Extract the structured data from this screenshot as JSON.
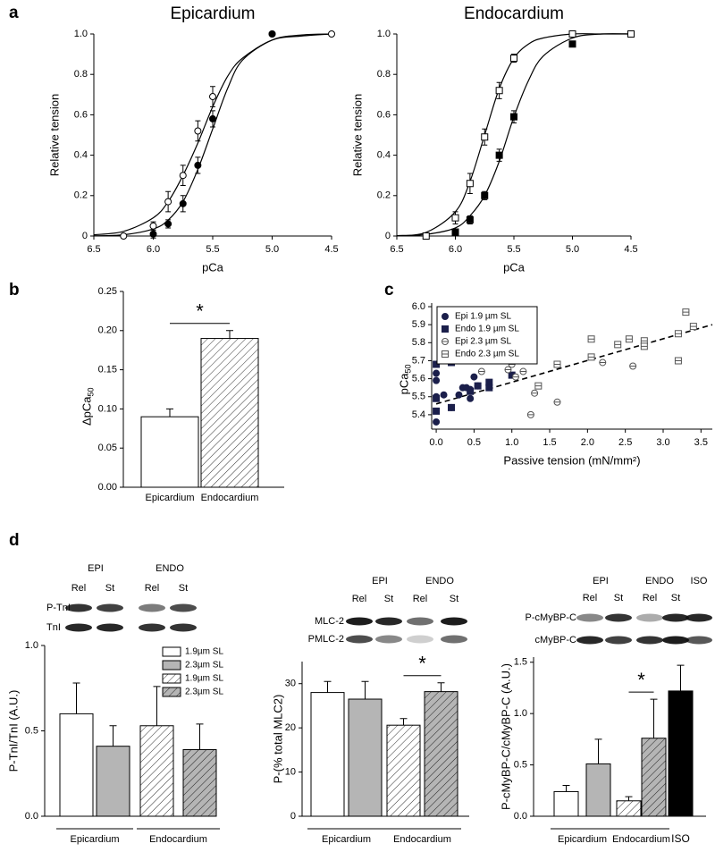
{
  "panel_labels": [
    "a",
    "b",
    "c",
    "d"
  ],
  "blots": [
    {
      "groups": [
        "EPI",
        "ENDO"
      ],
      "lanes": [
        "Rel",
        "St",
        "Rel",
        "St"
      ],
      "rows": [
        "P-TnI",
        "TnI"
      ]
    },
    {
      "groups": [
        "EPI",
        "ENDO"
      ],
      "lanes": [
        "Rel",
        "St",
        "Rel",
        "St"
      ],
      "rows": [
        "MLC-2",
        "PMLC-2"
      ]
    },
    {
      "groups": [
        "EPI",
        "ENDO",
        "ISO"
      ],
      "lanes": [
        "Rel",
        "St",
        "Rel",
        "St"
      ],
      "rows": [
        "P-cMyBP-C",
        "cMyBP-C"
      ]
    }
  ],
  "chart_data": [
    {
      "type": "scatter",
      "title": "Epicardium",
      "x_label": "pCa",
      "y_label": "Relative tension",
      "xlim": [
        6.5,
        4.5
      ],
      "ylim": [
        0,
        1
      ],
      "xticks": [
        6.5,
        {
          "value": 6,
          "label": "6.0"
        },
        5.5,
        {
          "value": 5,
          "label": "5.0"
        },
        4.5
      ],
      "yticks": [
        0,
        0.2,
        0.4,
        0.6,
        0.8,
        {
          "value": 1,
          "label": "1.0"
        }
      ],
      "series": [
        {
          "color": "#000000",
          "marker": "circle",
          "filled": false,
          "x": [
            6.25,
            6.0,
            5.875,
            5.75,
            5.625,
            5.5,
            5.0,
            4.5
          ],
          "values": [
            0,
            0.05,
            0.17,
            0.3,
            0.52,
            0.69,
            1.0,
            1.0
          ],
          "errors": [
            0,
            0.02,
            0.05,
            0.05,
            0.05,
            0.05,
            0.01,
            0
          ]
        },
        {
          "color": "#000000",
          "marker": "circle",
          "filled": true,
          "x": [
            6.0,
            5.875,
            5.75,
            5.625,
            5.5,
            5.0
          ],
          "values": [
            0.01,
            0.06,
            0.16,
            0.35,
            0.58,
            1.0
          ],
          "errors": [
            0.02,
            0.02,
            0.04,
            0.04,
            0.04,
            0.01
          ]
        }
      ],
      "fits": [
        {
          "x": [
            6.5,
            6.25,
            6.0,
            5.875,
            5.75,
            5.625,
            5.5,
            5.375,
            5.25,
            5.0,
            4.75,
            4.5
          ],
          "values": [
            0.006,
            0.023,
            0.09,
            0.17,
            0.3,
            0.46,
            0.64,
            0.79,
            0.88,
            0.97,
            0.99,
            1.0
          ]
        },
        {
          "x": [
            6.5,
            6.25,
            6.0,
            5.875,
            5.75,
            5.625,
            5.5,
            5.375,
            5.25,
            5.0,
            4.75,
            4.5
          ],
          "values": [
            0.001,
            0.006,
            0.035,
            0.079,
            0.17,
            0.33,
            0.53,
            0.73,
            0.87,
            0.97,
            0.995,
            1.0
          ]
        }
      ]
    },
    {
      "type": "scatter",
      "title": "Endocardium",
      "x_label": "pCa",
      "y_label": "Relative tension",
      "xlim": [
        6.5,
        4.5
      ],
      "ylim": [
        0,
        1
      ],
      "xticks": [
        6.5,
        {
          "value": 6,
          "label": "6.0"
        },
        5.5,
        {
          "value": 5,
          "label": "5.0"
        },
        4.5
      ],
      "yticks": [
        0,
        0.2,
        0.4,
        0.6,
        0.8,
        {
          "value": 1,
          "label": "1.0"
        }
      ],
      "series": [
        {
          "color": "#000000",
          "marker": "square",
          "filled": false,
          "x": [
            6.25,
            6.0,
            5.875,
            5.75,
            5.625,
            5.5,
            5.0,
            4.5
          ],
          "values": [
            0,
            0.09,
            0.26,
            0.49,
            0.72,
            0.88,
            1.0,
            1.0
          ],
          "errors": [
            0,
            0.03,
            0.05,
            0.04,
            0.04,
            0.02,
            0,
            0
          ]
        },
        {
          "color": "#000000",
          "marker": "square",
          "filled": true,
          "x": [
            6.0,
            5.875,
            5.75,
            5.625,
            5.5,
            5.0
          ],
          "values": [
            0.02,
            0.08,
            0.2,
            0.4,
            0.59,
            0.95
          ],
          "errors": [
            0.01,
            0.02,
            0.02,
            0.03,
            0.03,
            0.01
          ]
        }
      ],
      "fits": [
        {
          "x": [
            6.5,
            6.25,
            6.0,
            5.875,
            5.75,
            5.625,
            5.5,
            5.375,
            5.25,
            5.0,
            4.75,
            4.5
          ],
          "values": [
            0.002,
            0.018,
            0.12,
            0.27,
            0.5,
            0.73,
            0.88,
            0.95,
            0.98,
            1.0,
            1.0,
            1.0
          ]
        },
        {
          "x": [
            6.5,
            6.25,
            6.0,
            5.875,
            5.75,
            5.625,
            5.5,
            5.375,
            5.25,
            5.0,
            4.75,
            4.5
          ],
          "values": [
            0.001,
            0.008,
            0.04,
            0.1,
            0.2,
            0.37,
            0.59,
            0.77,
            0.89,
            0.98,
            1.0,
            1.0
          ]
        }
      ]
    },
    {
      "type": "bar",
      "y_label": "ΔpCa",
      "y_label_sub": "50",
      "categories": [
        "Epicardium",
        "Endocardium"
      ],
      "values": [
        0.09,
        0.19
      ],
      "errors": [
        0.01,
        0.01
      ],
      "colors": [
        "#ffffff",
        "#ffffff"
      ],
      "hatched": [
        false,
        true
      ],
      "ylim": [
        0,
        0.25
      ],
      "yticks": [
        {
          "value": 0,
          "label": "0.00"
        },
        0.05,
        {
          "value": 0.1,
          "label": "0.10"
        },
        0.15,
        {
          "value": 0.2,
          "label": "0.20"
        },
        0.25
      ],
      "annotation": "*"
    },
    {
      "type": "scatter",
      "x_label": "Passive tension (mN/mm²)",
      "y_label": "pCa",
      "y_label_sub": "50",
      "xlim": [
        -0.06,
        3.65
      ],
      "ylim": [
        5.32,
        6.02
      ],
      "xticks": [
        {
          "value": 0,
          "label": "0.0"
        },
        0.5,
        {
          "value": 1,
          "label": "1.0"
        },
        1.5,
        {
          "value": 2,
          "label": "2.0"
        },
        2.5,
        {
          "value": 3,
          "label": "3.0"
        },
        3.5
      ],
      "yticks": [
        5.4,
        5.5,
        5.6,
        5.7,
        5.8,
        5.9,
        {
          "value": 6,
          "label": "6.0"
        }
      ],
      "legend": "upper left",
      "series": [
        {
          "name": "Epi 1.9 µm SL",
          "color": "#1b1f4b",
          "marker": "circle",
          "filled": true,
          "x": [
            0,
            0,
            0,
            0,
            0.1,
            0.2,
            0.3,
            0.35,
            0.4,
            0.45,
            0.45,
            0.5,
            0.55
          ],
          "values": [
            5.63,
            5.59,
            5.5,
            5.36,
            5.51,
            5.44,
            5.51,
            5.55,
            5.55,
            5.54,
            5.49,
            5.61,
            5.56
          ]
        },
        {
          "name": "Endo 1.9 µm SL",
          "color": "#1b1f4b",
          "marker": "square",
          "filled": true,
          "x": [
            0,
            0,
            0,
            0.2,
            0.2,
            0.45,
            0.55,
            0.7,
            0.7,
            1.0
          ],
          "values": [
            5.68,
            5.49,
            5.42,
            5.69,
            5.44,
            5.53,
            5.56,
            5.58,
            5.55,
            5.62
          ]
        },
        {
          "name": "Epi 2.3 µm SL",
          "color": "#555555",
          "marker": "circle-bar",
          "filled": false,
          "x": [
            0.6,
            0.95,
            1.0,
            1.05,
            1.15,
            1.25,
            1.3,
            1.6,
            2.2,
            2.6
          ],
          "values": [
            5.64,
            5.65,
            5.68,
            5.61,
            5.64,
            5.4,
            5.52,
            5.47,
            5.69,
            5.67
          ]
        },
        {
          "name": "Endo 2.3 µm SL",
          "color": "#555555",
          "marker": "square-bar",
          "filled": false,
          "x": [
            1.35,
            1.6,
            2.05,
            2.05,
            2.4,
            2.55,
            2.75,
            2.75,
            3.2,
            3.2,
            3.3,
            3.4
          ],
          "values": [
            5.56,
            5.68,
            5.72,
            5.82,
            5.79,
            5.82,
            5.81,
            5.78,
            5.85,
            5.7,
            5.97,
            5.89
          ]
        }
      ],
      "trend": {
        "x": [
          0,
          3.65
        ],
        "values": [
          5.46,
          5.9
        ]
      }
    },
    {
      "type": "bar",
      "y_label": "P-TnI/TnI (A.U.)",
      "values": [
        0.6,
        0.41,
        0.53,
        0.39
      ],
      "errors": [
        0.18,
        0.12,
        0.23,
        0.15
      ],
      "colors": [
        "#ffffff",
        "#b5b5b5",
        "#ffffff",
        "#b5b5b5"
      ],
      "hatched": [
        false,
        false,
        true,
        true
      ],
      "groups": [
        "Epicardium",
        "Endocardium"
      ],
      "legend": [
        "1.9µm SL",
        "2.3µm SL",
        "1.9µm SL",
        "2.3µm SL"
      ],
      "ylim": [
        0,
        1
      ],
      "yticks": [
        {
          "value": 0,
          "label": "0.0"
        },
        0.5,
        {
          "value": 1,
          "label": "1.0"
        }
      ]
    },
    {
      "type": "bar",
      "y_label": "P-(% total MLC2)",
      "values": [
        28,
        26.5,
        20.6,
        28.2
      ],
      "errors": [
        2.5,
        4,
        1.5,
        2
      ],
      "colors": [
        "#ffffff",
        "#b5b5b5",
        "#ffffff",
        "#b5b5b5"
      ],
      "hatched": [
        false,
        false,
        true,
        true
      ],
      "groups": [
        "Epicardium",
        "Endocardium"
      ],
      "ylim": [
        0,
        35
      ],
      "yticks": [
        0,
        10,
        20,
        30
      ],
      "annotation": "*"
    },
    {
      "type": "bar",
      "y_label": "P-cMyBP-C/cMyBP-C (A.U.)",
      "values": [
        0.24,
        0.51,
        0.15,
        0.76,
        1.22
      ],
      "errors": [
        0.06,
        0.24,
        0.04,
        0.38,
        0.25
      ],
      "colors": [
        "#ffffff",
        "#b5b5b5",
        "#ffffff",
        "#b5b5b5",
        "#000000"
      ],
      "hatched": [
        false,
        false,
        true,
        true,
        false
      ],
      "categories": [
        null,
        null,
        null,
        null,
        "ISO"
      ],
      "groups": [
        "Epicardium",
        "Endocardium"
      ],
      "ylim": [
        0,
        1.55
      ],
      "yticks": [
        {
          "value": 0,
          "label": "0.0"
        },
        0.5,
        {
          "value": 1,
          "label": "1.0"
        },
        1.5
      ],
      "annotation": "*"
    }
  ]
}
